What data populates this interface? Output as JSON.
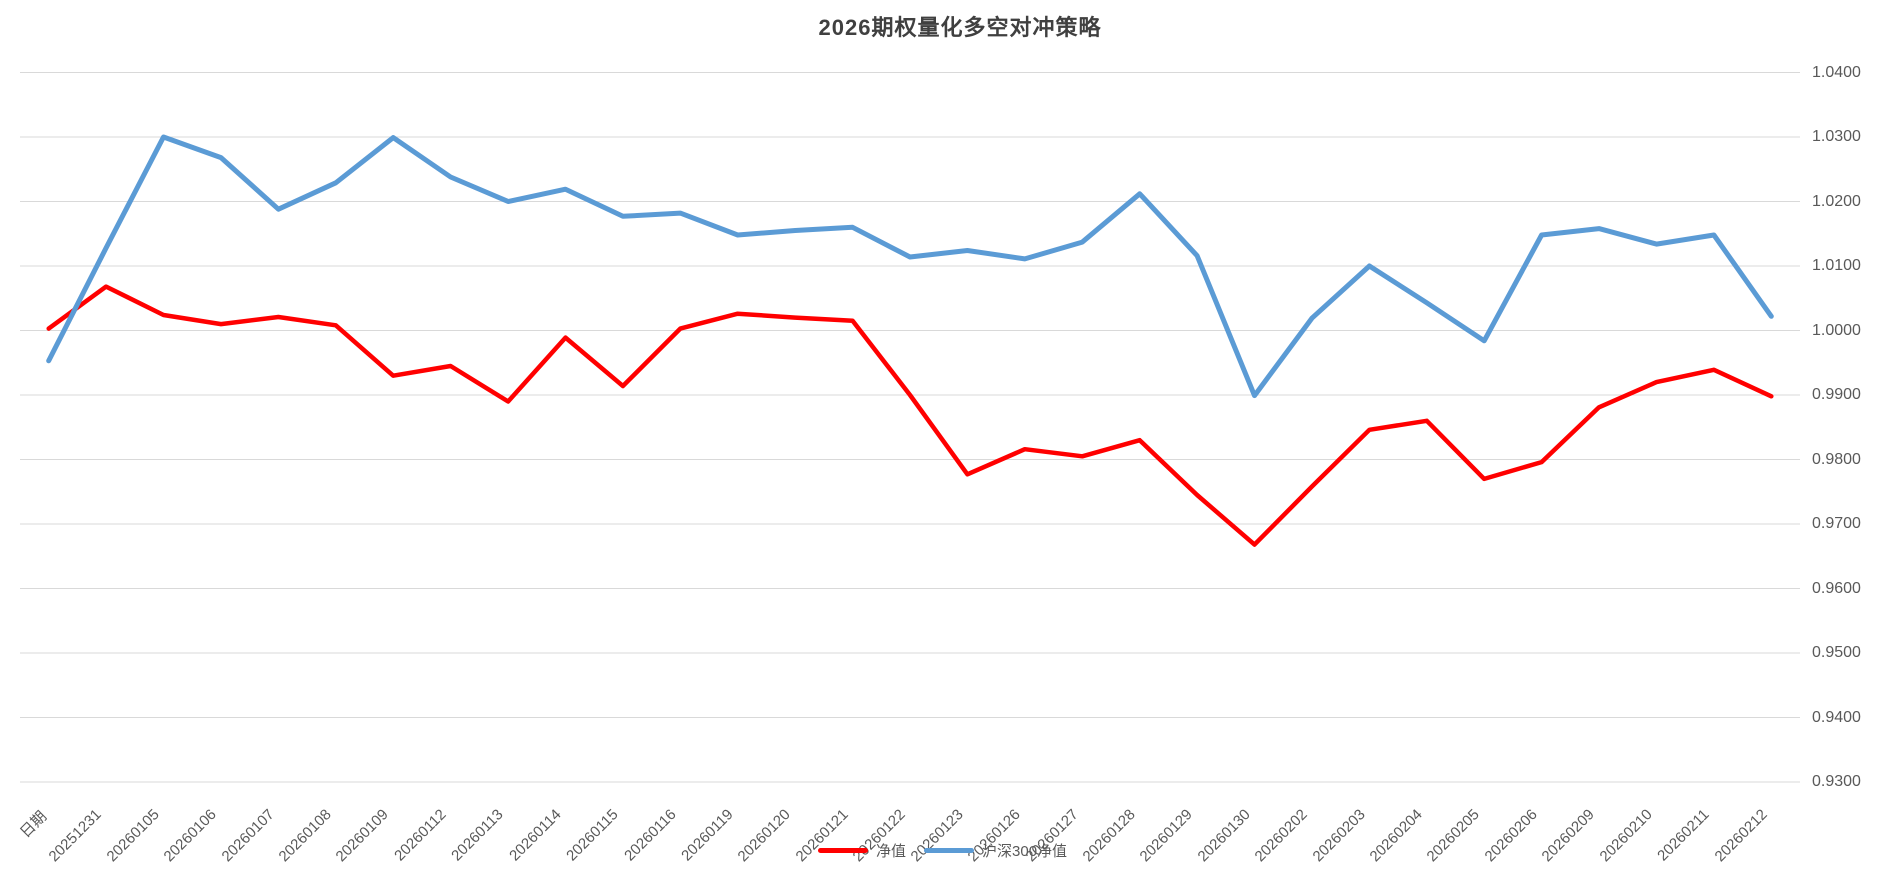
{
  "page": {
    "background": "#ffffff",
    "text_color": "#595959",
    "title_color": "#404040",
    "gridline_color": "#d9d9d9"
  },
  "chart_data": {
    "type": "line",
    "title": "2026期权量化多空对冲策略",
    "xlabel": "",
    "ylabel": "",
    "grid": true,
    "x_label_rotation": -45,
    "categories": [
      "日期",
      "20251231",
      "20260105",
      "20260106",
      "20260107",
      "20260108",
      "20260109",
      "20260112",
      "20260113",
      "20260114",
      "20260115",
      "20260116",
      "20260119",
      "20260120",
      "20260121",
      "20260122",
      "20260123",
      "20260126",
      "20260127",
      "20260128",
      "20260129",
      "20260130",
      "20260202",
      "20260203",
      "20260204",
      "20260205",
      "20260206",
      "20260209",
      "20260210",
      "20260211",
      "20260212"
    ],
    "series": [
      {
        "name": "净值",
        "color": "#ff0000",
        "stroke_width": 4.5,
        "values": [
          1.0003,
          1.0068,
          1.0024,
          1.001,
          1.0021,
          1.0008,
          0.993,
          0.9945,
          0.989,
          0.9989,
          0.9914,
          1.0003,
          1.0026,
          1.002,
          1.0015,
          0.99,
          0.9777,
          0.9816,
          0.9805,
          0.983,
          0.9745,
          0.9668,
          0.9758,
          0.9846,
          0.986,
          0.977,
          0.9796,
          0.9881,
          0.992,
          0.9939,
          0.9898
        ]
      },
      {
        "name": "沪深300净值",
        "color": "#5b9bd5",
        "stroke_width": 5,
        "values": [
          0.9953,
          1.0128,
          1.03,
          1.0268,
          1.0188,
          1.0229,
          1.0299,
          1.0238,
          1.02,
          1.0219,
          1.0177,
          1.0182,
          1.0148,
          1.0155,
          1.016,
          1.0114,
          1.0124,
          1.0111,
          1.0137,
          1.0212,
          1.0116,
          0.9899,
          1.0019,
          1.01,
          1.0043,
          0.9984,
          1.0148,
          1.0158,
          1.0134,
          1.0148,
          1.0022
        ]
      }
    ],
    "y_axis": {
      "min": 0.93,
      "max": 1.04,
      "step": 0.01,
      "side": "right",
      "tick_labels": [
        "1.0400",
        "1.0300",
        "1.0200",
        "1.0100",
        "1.0000",
        "0.9900",
        "0.9800",
        "0.9700",
        "0.9600",
        "0.9500",
        "0.9400",
        "0.9300"
      ]
    },
    "legend": {
      "position": "bottom",
      "items": [
        "净值",
        "沪深300净值"
      ]
    }
  }
}
